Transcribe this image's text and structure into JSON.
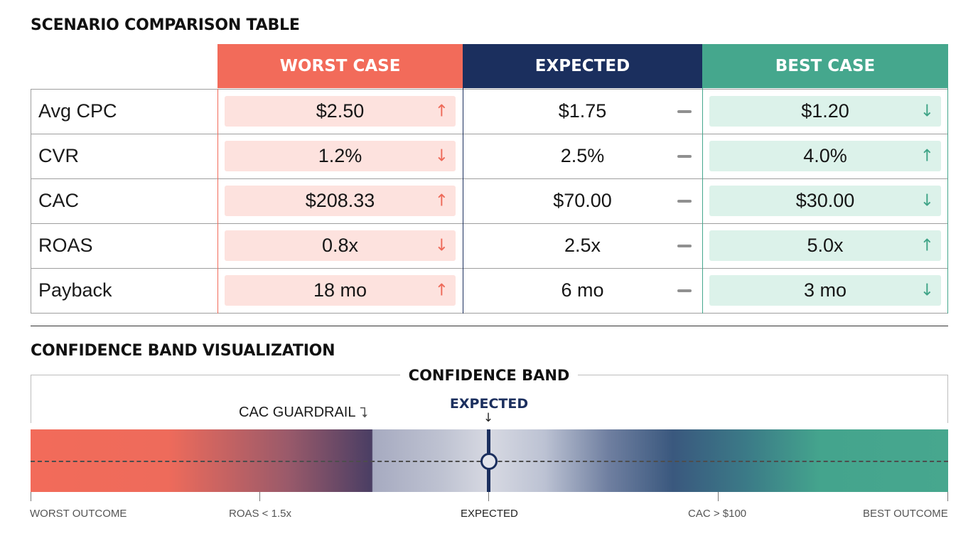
{
  "table_title": "SCENARIO COMPARISON TABLE",
  "columns": {
    "worst": "WORST CASE",
    "expected": "EXPECTED",
    "best": "BEST CASE"
  },
  "rows": [
    {
      "metric": "Avg CPC",
      "worst": "$2.50",
      "worst_trend": "up",
      "expected": "$1.75",
      "best": "$1.20",
      "best_trend": "down"
    },
    {
      "metric": "CVR",
      "worst": "1.2%",
      "worst_trend": "down",
      "expected": "2.5%",
      "best": "4.0%",
      "best_trend": "up"
    },
    {
      "metric": "CAC",
      "worst": "$208.33",
      "worst_trend": "up",
      "expected": "$70.00",
      "best": "$30.00",
      "best_trend": "down"
    },
    {
      "metric": "ROAS",
      "worst": "0.8x",
      "worst_trend": "down",
      "expected": "2.5x",
      "best": "5.0x",
      "best_trend": "up"
    },
    {
      "metric": "Payback",
      "worst": "18 mo",
      "worst_trend": "up",
      "expected": "6 mo",
      "best": "3 mo",
      "best_trend": "down"
    }
  ],
  "band_section_title": "CONFIDENCE BAND VISUALIZATION",
  "band": {
    "title": "CONFIDENCE BAND",
    "guardrail_label": "CAC GUARDRAIL",
    "expected_marker_label": "EXPECTED",
    "axis_labels": {
      "worst": "WORST OUTCOME",
      "roas": "ROAS < 1.5x",
      "expected": "EXPECTED",
      "cac": "CAC > $100",
      "best": "BEST OUTCOME"
    }
  },
  "colors": {
    "worst": "#f26b5a",
    "expected": "#1b2f5e",
    "best": "#45a78d",
    "neutral_indicator": "#909090"
  }
}
